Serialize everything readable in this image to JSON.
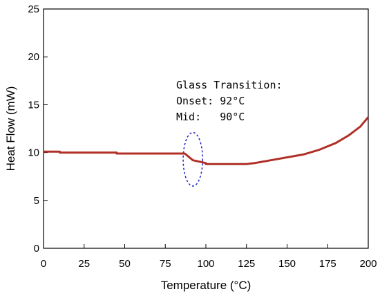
{
  "chart_data": {
    "type": "line",
    "title": "",
    "xlabel": "Temperature (°C)",
    "ylabel": "Heat Flow (mW)",
    "xlim": [
      0,
      200
    ],
    "ylim": [
      0,
      25
    ],
    "xticks": [
      0,
      25,
      50,
      75,
      100,
      125,
      150,
      175,
      200
    ],
    "yticks": [
      0,
      5,
      10,
      15,
      20,
      25
    ],
    "grid": false,
    "legend": "none",
    "series": [
      {
        "color": "#b03028",
        "x": [
          0,
          10,
          10,
          45,
          45,
          87,
          92,
          100,
          100,
          125,
          130,
          140,
          150,
          160,
          170,
          180,
          188,
          195,
          200
        ],
        "y": [
          10.1,
          10.1,
          10.0,
          10.0,
          9.9,
          9.9,
          9.2,
          8.9,
          8.8,
          8.8,
          8.9,
          9.2,
          9.5,
          9.8,
          10.3,
          11.0,
          11.8,
          12.7,
          13.7
        ]
      }
    ],
    "annotations": {
      "lines": [
        "Glass Transition:",
        "Onset: 92°C",
        "Mid:   90°C"
      ],
      "highlight_color": "#2222cc",
      "highlight_center": [
        92,
        9.3
      ],
      "highlight_radius": [
        6,
        2.8
      ]
    }
  }
}
